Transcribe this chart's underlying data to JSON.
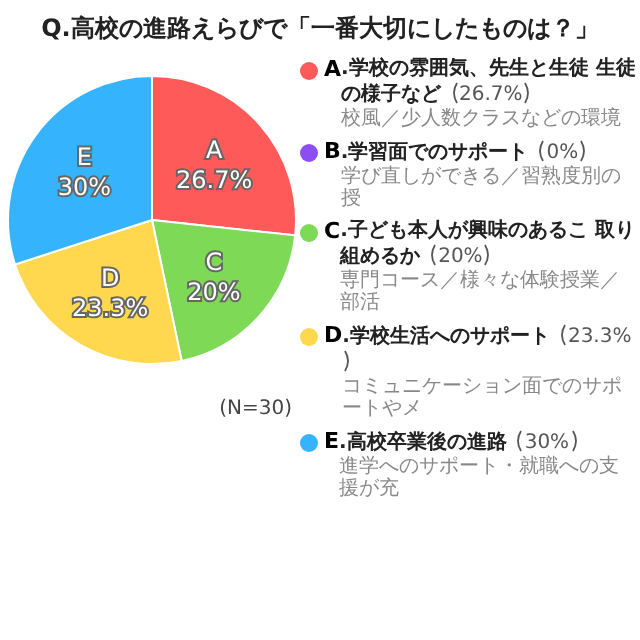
{
  "chart_data": {
    "type": "pie",
    "title": "Q.高校の進路えらびで「一番大切にしたものは？」",
    "categories": [
      "A",
      "B",
      "C",
      "D",
      "E"
    ],
    "values": [
      26.7,
      0,
      20,
      23.3,
      30
    ],
    "value_labels": [
      "26.7%",
      "0%",
      "20%",
      "23.3%",
      "30%"
    ],
    "colors": [
      "#fe5a5a",
      "#8b4ef5",
      "#7ed957",
      "#ffd84f",
      "#35b4fd"
    ],
    "data_labels": true,
    "legend": "right",
    "annotations": [
      ".学校の雰囲気、先生と生徒 生徒の様子など",
      "校風／少人数クラスなどの環境",
      ".学習面でのサポート",
      "学び直しができる／習熟度別の授",
      ".子ども本人が興味のあるこ 取り組めるか",
      "専門コース／様々な体験授業／部活",
      ".学校生活へのサポート",
      "コミュニケーション面でのサポートやメ",
      ".高校卒業後の進路",
      "進学へのサポート・就職への支援が充",
      "(N=30)"
    ]
  }
}
